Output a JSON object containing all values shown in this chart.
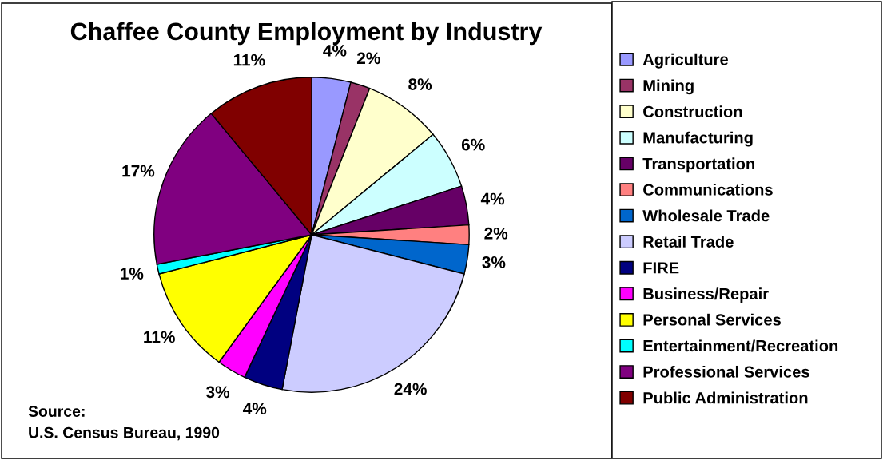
{
  "chart_data": {
    "type": "pie",
    "title": "Chaffee County Employment by Industry",
    "categories": [
      "Agriculture",
      "Mining",
      "Construction",
      "Manufacturing",
      "Transportation",
      "Communications",
      "Wholesale Trade",
      "Retail Trade",
      "FIRE",
      "Business/Repair",
      "Personal Services",
      "Entertainment/Recreation",
      "Professional Services",
      "Public Administration"
    ],
    "values": [
      4,
      2,
      8,
      6,
      4,
      2,
      3,
      24,
      4,
      3,
      11,
      1,
      17,
      11
    ],
    "value_labels": [
      "4%",
      "2%",
      "8%",
      "6%",
      "4%",
      "2%",
      "3%",
      "24%",
      "4%",
      "3%",
      "11%",
      "1%",
      "17%",
      "11%"
    ],
    "colors": [
      "#9999ff",
      "#993366",
      "#ffffcc",
      "#ccffff",
      "#660066",
      "#ff8080",
      "#0066cc",
      "#ccccff",
      "#000080",
      "#ff00ff",
      "#ffff00",
      "#00ffff",
      "#800080",
      "#800000"
    ],
    "legend": "right",
    "annotations": [
      "Source:\nU.S. Census Bureau, 1990"
    ]
  }
}
